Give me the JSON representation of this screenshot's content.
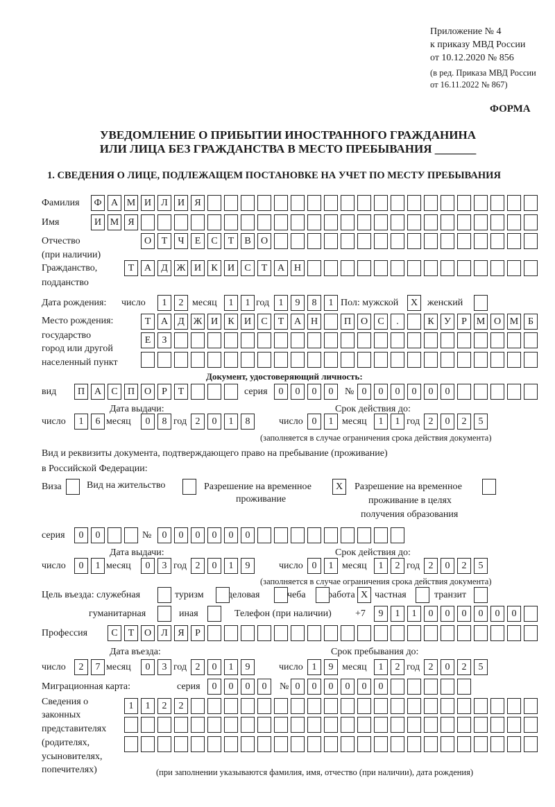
{
  "header": {
    "appendix": "Приложение № 4",
    "order": "к приказу МВД России",
    "order_date": "от 10.12.2020 № 856",
    "revision1": "(в ред. Приказа МВД России",
    "revision2": "от 16.11.2022 № 867)",
    "form": "ФОРМА",
    "title1": "УВЕДОМЛЕНИЕ О ПРИБЫТИИ ИНОСТРАННОГО ГРАЖДАНИНА",
    "title2": "ИЛИ ЛИЦА БЕЗ ГРАЖДАНСТВА В МЕСТО ПРЕБЫВАНИЯ _______",
    "section1": "1. СВЕДЕНИЯ О ЛИЦЕ, ПОДЛЕЖАЩЕМ ПОСТАНОВКЕ НА УЧЕТ ПО МЕСТУ ПРЕБЫВАНИЯ"
  },
  "labels": {
    "surname": "Фамилия",
    "name": "Имя",
    "patronymic": "Отчество",
    "patronymic_note": "(при наличии)",
    "citizenship": "Гражданство,",
    "citizenship2": "подданство",
    "birth_date": "Дата рождения:",
    "day": "число",
    "month": "месяц",
    "year": "год",
    "sex": "Пол: мужской",
    "female": "женский",
    "birthplace": "Место рождения:",
    "birthplace2": "государство",
    "birthplace3": "город или другой",
    "birthplace4": "населенный пункт",
    "id_doc": "Документ, удостоверяющий личность:",
    "kind": "вид",
    "series": "серия",
    "number": "№",
    "issue_date": "Дата выдачи:",
    "valid_until": "Срок действия до:",
    "validity_note": "(заполняется в случае ограничения срока действия документа)",
    "right_doc1": "Вид и реквизиты документа, подтверждающего право на пребывание (проживание)",
    "right_doc2": "в Российской Федерации:",
    "visa": "Виза",
    "residence": "Вид на жительство",
    "temp1": "Разрешение на временное",
    "temp2": "проживание",
    "edu1": "Разрешение на временное",
    "edu2": "проживание в целях",
    "edu3": "получения образования",
    "purpose": "Цель въезда: служебная",
    "tourism": "туризм",
    "business": "деловая",
    "study": "учеба",
    "work": "работа",
    "private": "частная",
    "transit": "транзит",
    "humanitarian": "гуманитарная",
    "other": "иная",
    "phone": "Телефон (при наличии)",
    "phone_prefix": "+7",
    "profession": "Профессия",
    "entry_date": "Дата въезда:",
    "stay_until": "Срок пребывания до:",
    "migration_card": "Миграционная карта:",
    "rep1": "Сведения о",
    "rep2": "законных",
    "rep3": "представителях",
    "rep4": "(родителях,",
    "rep5": "усыновителях,",
    "rep6": "попечителях)",
    "rep_note": "(при заполнении указываются фамилия, имя, отчество (при наличии), дата рождения)"
  },
  "fields": {
    "surname": "ФАМИЛИЯ",
    "name": "ИМЯ",
    "patronymic": "ОТЧЕСТВО",
    "citizenship": "ТАДЖИКИСТАН",
    "birth_day": "12",
    "birth_month": "11",
    "birth_year": "1981",
    "sex_male": "X",
    "sex_female": "",
    "birthplace1": "ТАДЖИКИСТАН ПОС. КУРМОМБ",
    "birthplace2": "ЕЗ",
    "birthplace3": "",
    "doc_kind": "ПАСПОРТ",
    "doc_series": "0000",
    "doc_number": "000000",
    "doc_issue_day": "16",
    "doc_issue_month": "08",
    "doc_issue_year": "2018",
    "doc_valid_day": "01",
    "doc_valid_month": "11",
    "doc_valid_year": "2025",
    "visa": "",
    "residence": "",
    "temp_residence": "X",
    "edu_residence": "",
    "right_series": "00",
    "right_number": "000000",
    "right_issue_day": "01",
    "right_issue_month": "03",
    "right_issue_year": "2019",
    "right_valid_day": "01",
    "right_valid_month": "12",
    "right_valid_year": "2025",
    "p_service": "",
    "p_tourism": "",
    "p_business": "",
    "p_study": "",
    "p_work": "X",
    "p_private": "",
    "p_transit": "",
    "p_humanitarian": "",
    "p_other": "",
    "phone": "911000000",
    "profession": "СТОЛЯР",
    "entry_day": "27",
    "entry_month": "03",
    "entry_year": "2019",
    "stay_day": "19",
    "stay_month": "12",
    "stay_year": "2025",
    "mc_series": "0000",
    "mc_number": "000000",
    "rep1": "1122",
    "rep2": "",
    "rep3": ""
  }
}
